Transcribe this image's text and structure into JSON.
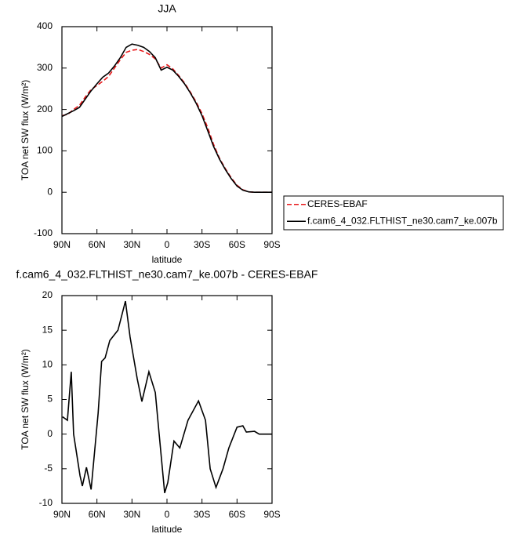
{
  "chart_data": [
    {
      "type": "line",
      "title": "JJA",
      "xlabel": "latitude",
      "ylabel": "TOA net SW flux (W/m²)",
      "x": [
        90,
        85,
        80,
        75,
        70,
        65,
        60,
        55,
        50,
        45,
        40,
        35,
        30,
        25,
        20,
        15,
        10,
        5,
        0,
        -5,
        -10,
        -15,
        -20,
        -25,
        -30,
        -35,
        -40,
        -45,
        -50,
        -55,
        -60,
        -65,
        -70,
        -75,
        -80,
        -85,
        -90
      ],
      "series": [
        {
          "name": "CERES-EBAF",
          "color": "#e8191b",
          "dashed": true,
          "values": [
            185,
            188,
            200,
            210,
            230,
            248,
            258,
            268,
            280,
            300,
            320,
            338,
            343,
            345,
            340,
            333,
            322,
            300,
            308,
            298,
            282,
            264,
            242,
            218,
            190,
            155,
            115,
            82,
            57,
            35,
            17,
            6,
            1,
            0,
            0,
            0,
            0
          ]
        },
        {
          "name": "f.cam6_4_032.FLTHIST_ne30.cam7_ke.007b",
          "color": "#000000",
          "dashed": false,
          "values": [
            183,
            190,
            197,
            205,
            225,
            245,
            262,
            278,
            288,
            305,
            325,
            350,
            358,
            355,
            350,
            340,
            325,
            295,
            302,
            295,
            280,
            262,
            240,
            215,
            185,
            148,
            110,
            80,
            55,
            33,
            15,
            5,
            1,
            0,
            0,
            0,
            0
          ]
        }
      ],
      "xlim": [
        90,
        -90
      ],
      "xticks": [
        {
          "value": 90,
          "label": "90N"
        },
        {
          "value": 60,
          "label": "60N"
        },
        {
          "value": 30,
          "label": "30N"
        },
        0,
        {
          "value": -30,
          "label": "30S"
        },
        {
          "value": -60,
          "label": "60S"
        },
        {
          "value": -90,
          "label": "90S"
        }
      ],
      "ylim": [
        -100,
        400
      ],
      "yticks": [
        -100,
        0,
        100,
        200,
        300,
        400
      ],
      "legend": "outside-right"
    },
    {
      "type": "line",
      "title": "f.cam6_4_032.FLTHIST_ne30.cam7_ke.007b - CERES-EBAF",
      "xlabel": "latitude",
      "ylabel": "TOA net SW flux (W/m²)",
      "x": [
        89.5,
        85.3,
        82,
        80,
        74.5,
        72.5,
        69,
        65,
        59,
        56,
        53,
        49,
        42,
        35.6,
        31.6,
        25.5,
        21.5,
        15.5,
        10,
        6.7,
        2,
        -0.7,
        -6,
        -11,
        -18,
        -27,
        -33,
        -37,
        -42,
        -48,
        -53,
        -60,
        -65,
        -68,
        -75,
        -79,
        -90
      ],
      "values": [
        2.5,
        2,
        9,
        0,
        -6,
        -7.5,
        -4.8,
        -8,
        3,
        10.5,
        11,
        13.5,
        15,
        19.2,
        14,
        8,
        4.7,
        9,
        6,
        0,
        -8.5,
        -7,
        -1,
        -2,
        2,
        4.8,
        2,
        -5,
        -7.7,
        -5,
        -2,
        1,
        1.2,
        0.3,
        0.4,
        0,
        0
      ],
      "color": "#000000",
      "xlim": [
        90,
        -90
      ],
      "xticks": [
        {
          "value": 90,
          "label": "90N"
        },
        {
          "value": 60,
          "label": "60N"
        },
        {
          "value": 30,
          "label": "30N"
        },
        0,
        {
          "value": -30,
          "label": "30S"
        },
        {
          "value": -60,
          "label": "60S"
        },
        {
          "value": -90,
          "label": "90S"
        }
      ],
      "ylim": [
        -10,
        20
      ],
      "yticks": [
        -10,
        -5,
        0,
        5,
        10,
        15,
        20
      ]
    }
  ]
}
